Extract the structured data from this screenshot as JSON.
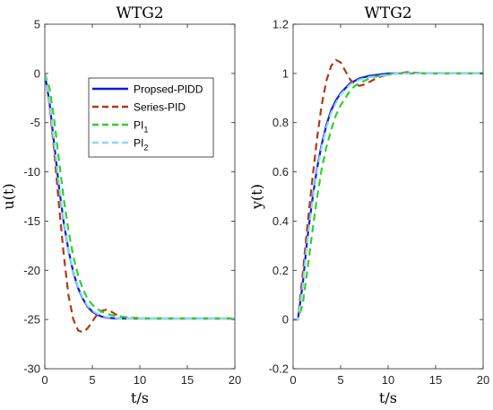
{
  "chart_data": [
    {
      "type": "line",
      "title": "WTG2",
      "xlabel": "t/s",
      "ylabel": "u(t)",
      "xlim": [
        0,
        20
      ],
      "ylim": [
        -30,
        5
      ],
      "xticks": [
        0,
        5,
        10,
        15,
        20
      ],
      "yticks": [
        -30,
        -25,
        -20,
        -15,
        -10,
        -5,
        0,
        5
      ],
      "grid": false,
      "legend_position": "top-right",
      "series": [
        {
          "name": "Propsed-PIDD",
          "color": "#0c1ecf",
          "dash": "solid",
          "x": [
            0,
            0.5,
            1,
            1.5,
            2,
            2.5,
            3,
            3.5,
            4,
            4.5,
            5,
            5.5,
            6,
            6.5,
            7,
            7.5,
            8,
            9,
            10,
            11,
            12,
            14,
            16,
            18,
            20
          ],
          "y": [
            0,
            -3.0,
            -7.3,
            -11.6,
            -15.2,
            -18.0,
            -20.2,
            -21.8,
            -22.9,
            -23.7,
            -24.2,
            -24.5,
            -24.7,
            -24.8,
            -24.85,
            -24.9,
            -24.9,
            -24.9,
            -24.9,
            -24.9,
            -24.9,
            -24.9,
            -24.9,
            -24.9,
            -24.9
          ]
        },
        {
          "name": "Series-PID",
          "color": "#b03a16",
          "dash": "dashed",
          "x": [
            0,
            0.5,
            1,
            1.5,
            2,
            2.5,
            3,
            3.5,
            4,
            4.5,
            5,
            5.5,
            6,
            6.5,
            7,
            7.5,
            8,
            9,
            10,
            11,
            12,
            14,
            16,
            18,
            20
          ],
          "y": [
            0,
            -3.2,
            -8.0,
            -13.5,
            -18.5,
            -22.6,
            -25.0,
            -26.1,
            -26.3,
            -25.9,
            -25.2,
            -24.5,
            -24.1,
            -24.0,
            -24.2,
            -24.5,
            -24.7,
            -24.9,
            -24.9,
            -24.9,
            -24.9,
            -24.9,
            -24.9,
            -24.9,
            -24.9
          ]
        },
        {
          "name": "PI1",
          "label_main": "PI",
          "label_sub": "1",
          "color": "#2fd12f",
          "dash": "dashed",
          "x": [
            0,
            0.5,
            1,
            1.5,
            2,
            2.5,
            3,
            3.5,
            4,
            4.5,
            5,
            5.5,
            6,
            6.5,
            7,
            7.5,
            8,
            9,
            10,
            11,
            12,
            14,
            16,
            18,
            20
          ],
          "y": [
            0,
            -1.5,
            -4.8,
            -8.9,
            -12.8,
            -16.0,
            -18.6,
            -20.5,
            -21.9,
            -22.9,
            -23.5,
            -23.9,
            -24.2,
            -24.4,
            -24.55,
            -24.65,
            -24.7,
            -24.8,
            -24.85,
            -24.9,
            -24.9,
            -24.9,
            -24.9,
            -24.9,
            -24.9
          ]
        },
        {
          "name": "PI2",
          "label_main": "PI",
          "label_sub": "2",
          "color": "#8ed6f5",
          "dash": "dashed",
          "x": [
            0,
            0.5,
            1,
            1.5,
            2,
            2.5,
            3,
            3.5,
            4,
            4.5,
            5,
            5.5,
            6,
            6.5,
            7,
            7.5,
            8,
            9,
            10,
            11,
            12,
            14,
            16,
            18,
            20
          ],
          "y": [
            0,
            -2.9,
            -7.1,
            -11.4,
            -15.0,
            -17.9,
            -20.1,
            -21.7,
            -22.8,
            -23.6,
            -24.1,
            -24.4,
            -24.6,
            -24.75,
            -24.8,
            -24.85,
            -24.9,
            -24.9,
            -24.9,
            -24.9,
            -24.9,
            -24.9,
            -24.9,
            -24.9,
            -24.9
          ]
        }
      ]
    },
    {
      "type": "line",
      "title": "WTG2",
      "xlabel": "t/s",
      "ylabel": "y(t)",
      "xlim": [
        0,
        20
      ],
      "ylim": [
        -0.2,
        1.2
      ],
      "xticks": [
        0,
        5,
        10,
        15,
        20
      ],
      "yticks": [
        -0.2,
        0,
        0.2,
        0.4,
        0.6,
        0.8,
        1,
        1.2
      ],
      "grid": false,
      "series": [
        {
          "name": "Propsed-PIDD",
          "color": "#0c1ecf",
          "dash": "solid",
          "x": [
            0,
            0.5,
            1,
            1.5,
            2,
            2.5,
            3,
            3.5,
            4,
            4.5,
            5,
            5.5,
            6,
            6.5,
            7,
            7.5,
            8,
            9,
            10,
            11,
            12,
            14,
            16,
            18,
            20
          ],
          "y": [
            0,
            0,
            0.14,
            0.33,
            0.48,
            0.61,
            0.71,
            0.79,
            0.85,
            0.89,
            0.92,
            0.94,
            0.96,
            0.97,
            0.98,
            0.985,
            0.99,
            0.995,
            1.0,
            1.0,
            1.0,
            1.0,
            1.0,
            1.0,
            1.0
          ]
        },
        {
          "name": "Series-PID",
          "color": "#b03a16",
          "dash": "dashed",
          "x": [
            0,
            0.5,
            1,
            1.5,
            2,
            2.5,
            3,
            3.5,
            4,
            4.5,
            5,
            5.5,
            6,
            6.5,
            7,
            7.5,
            8,
            9,
            10,
            11,
            12,
            14,
            16,
            18,
            20
          ],
          "y": [
            0,
            0,
            0.18,
            0.38,
            0.56,
            0.73,
            0.87,
            0.97,
            1.03,
            1.055,
            1.045,
            1.01,
            0.975,
            0.955,
            0.95,
            0.955,
            0.965,
            0.985,
            0.995,
            1.0,
            1.005,
            1.0,
            1.0,
            1.0,
            1.0
          ]
        },
        {
          "name": "PI1",
          "color": "#2fd12f",
          "dash": "dashed",
          "x": [
            0,
            0.5,
            1,
            1.5,
            2,
            2.5,
            3,
            3.5,
            4,
            4.5,
            5,
            5.5,
            6,
            6.5,
            7,
            7.5,
            8,
            9,
            10,
            11,
            12,
            14,
            16,
            18,
            20
          ],
          "y": [
            0,
            0,
            0.06,
            0.2,
            0.35,
            0.49,
            0.61,
            0.7,
            0.77,
            0.83,
            0.87,
            0.9,
            0.93,
            0.95,
            0.96,
            0.97,
            0.98,
            0.99,
            0.995,
            1.0,
            1.0,
            1.0,
            1.0,
            1.0,
            1.0
          ]
        },
        {
          "name": "PI2",
          "color": "#8ed6f5",
          "dash": "dashed",
          "x": [
            0,
            0.5,
            1,
            1.5,
            2,
            2.5,
            3,
            3.5,
            4,
            4.5,
            5,
            5.5,
            6,
            6.5,
            7,
            7.5,
            8,
            9,
            10,
            11,
            12,
            14,
            16,
            18,
            20
          ],
          "y": [
            0,
            0,
            0.13,
            0.32,
            0.47,
            0.6,
            0.7,
            0.78,
            0.84,
            0.88,
            0.915,
            0.935,
            0.955,
            0.965,
            0.975,
            0.98,
            0.985,
            0.99,
            0.995,
            1.0,
            1.0,
            1.0,
            1.0,
            1.0,
            1.0
          ]
        }
      ]
    }
  ]
}
